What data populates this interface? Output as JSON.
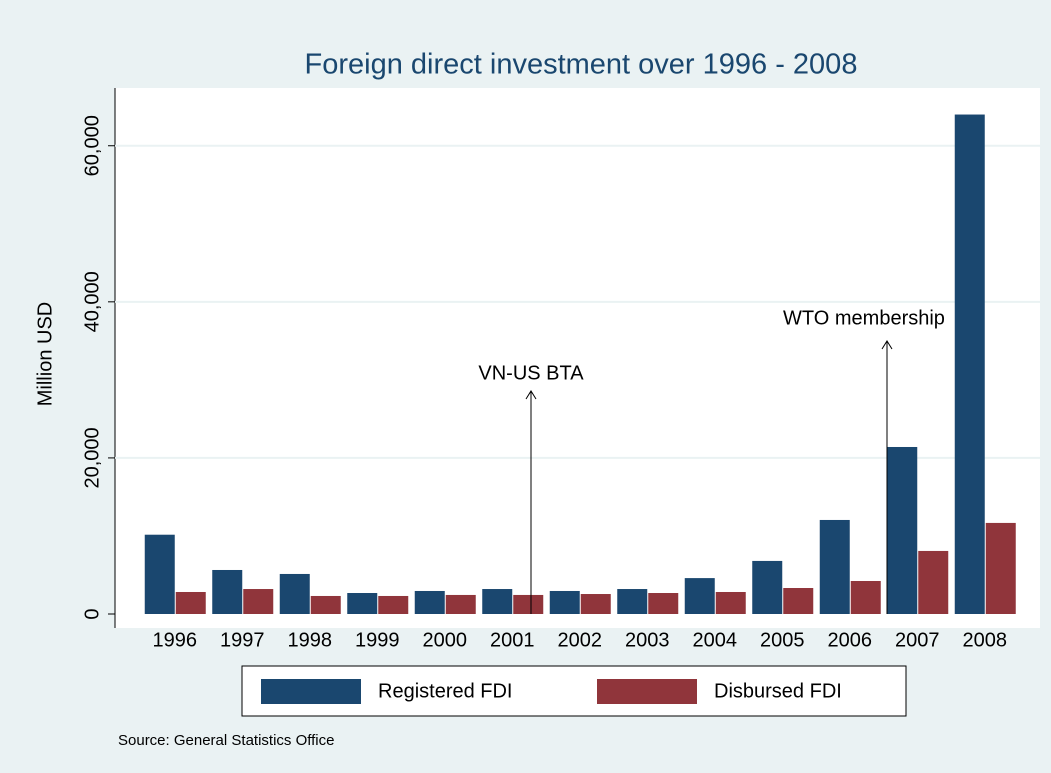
{
  "chart_data": {
    "type": "bar",
    "title": "Foreign direct investment over 1996 - 2008",
    "y_label": "Million USD",
    "categories": [
      "1996",
      "1997",
      "1998",
      "1999",
      "2000",
      "2001",
      "2002",
      "2003",
      "2004",
      "2005",
      "2006",
      "2007",
      "2008"
    ],
    "series": [
      {
        "name": "Registered FDI",
        "color": "#1a476f",
        "values": [
          10160,
          5640,
          5130,
          2690,
          2950,
          3200,
          2950,
          3200,
          4600,
          6800,
          12050,
          21400,
          64000
        ]
      },
      {
        "name": "Disbursed FDI",
        "color": "#90353b",
        "values": [
          2820,
          3200,
          2310,
          2310,
          2440,
          2440,
          2560,
          2690,
          2820,
          3330,
          4230,
          8080,
          11670
        ]
      }
    ],
    "ylim": [
      0,
      67400
    ],
    "yticks": [
      0,
      {
        "value": 20000,
        "label": "20,000"
      },
      {
        "value": 40000,
        "label": "40,000"
      },
      {
        "value": 60000,
        "label": "60,000"
      }
    ],
    "grid": true,
    "annotations": [
      "VN-US BTA",
      "WTO membership"
    ],
    "source": "Source:  General Statistics Office"
  }
}
